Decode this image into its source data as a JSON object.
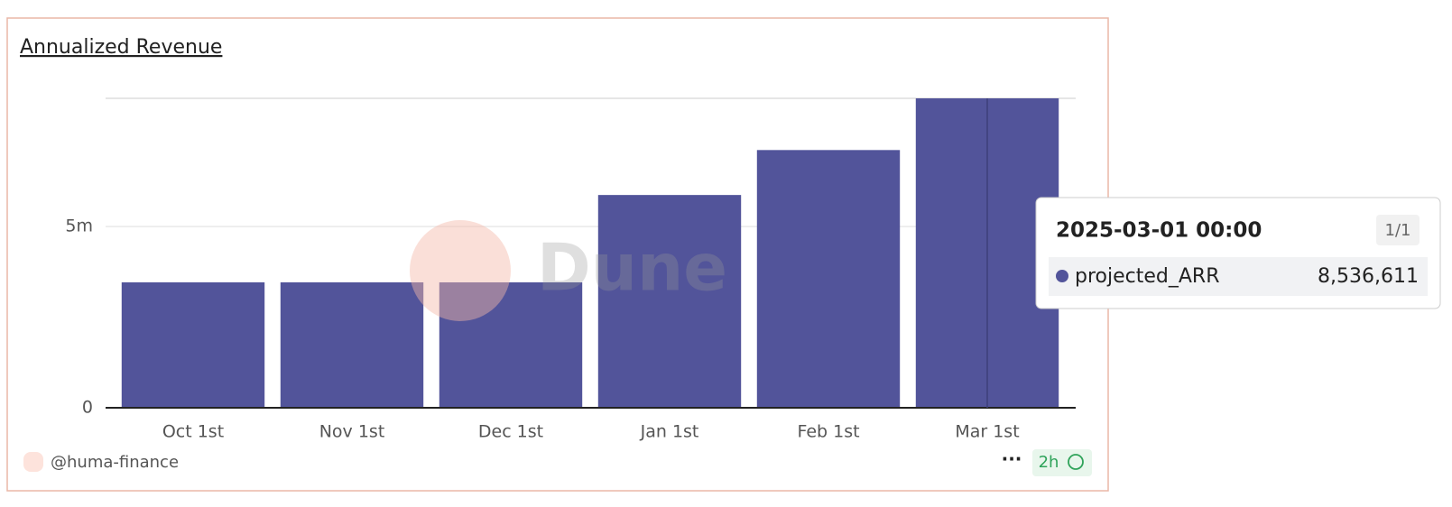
{
  "chart_data": {
    "type": "bar",
    "title": "Annualized Revenue",
    "categories": [
      "Oct 1st",
      "Nov 1st",
      "Dec 1st",
      "Jan 1st",
      "Feb 1st",
      "Mar 1st"
    ],
    "series": [
      {
        "name": "projected_ARR",
        "color": "#52549a",
        "values": [
          3460000,
          3460000,
          3460000,
          5870000,
          7110000,
          8536611
        ]
      }
    ],
    "ylim": [
      0,
      8536611
    ],
    "yticks": [
      0,
      {
        "value": 5000000,
        "label": "5m"
      }
    ],
    "grid": true,
    "watermark": "Dune",
    "tooltip": {
      "title": "2025-03-01 00:00",
      "page": "1/1",
      "value_label": "8,536,611"
    },
    "footer": {
      "author": "@huma-finance",
      "menu": "···",
      "age": "2h"
    }
  }
}
